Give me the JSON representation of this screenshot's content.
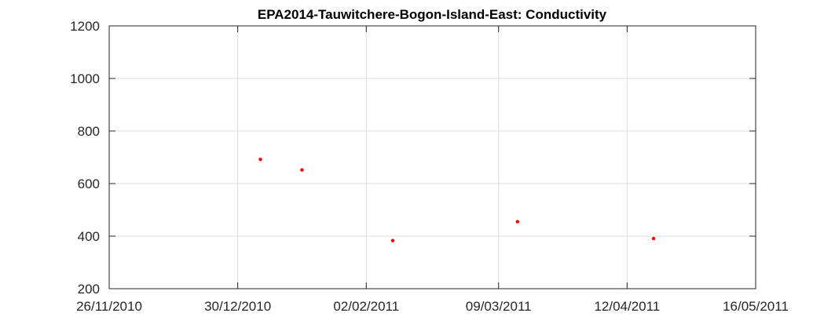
{
  "chart_data": {
    "type": "scatter",
    "title": "EPA2014-Tauwitchere-Bogon-Island-East: Conductivity",
    "xlabel": "",
    "ylabel": "",
    "x_axis_type": "date",
    "x_ticks": [
      "26/11/2010",
      "30/12/2010",
      "02/02/2011",
      "09/03/2011",
      "12/04/2011",
      "16/05/2011"
    ],
    "xlim": [
      "26/11/2010",
      "16/05/2011"
    ],
    "y_ticks": [
      200,
      400,
      600,
      800,
      1000,
      1200
    ],
    "ylim": [
      200,
      1200
    ],
    "grid": true,
    "series": [
      {
        "color": "#ff0000",
        "marker": "dot",
        "x": [
          "05/01/2011",
          "16/01/2011",
          "09/02/2011",
          "14/03/2011",
          "19/04/2011"
        ],
        "y": [
          692,
          652,
          383,
          455,
          391
        ]
      }
    ],
    "colors": {
      "grid": "#dedede",
      "axis": "#262626",
      "points": "#ff0000"
    }
  }
}
